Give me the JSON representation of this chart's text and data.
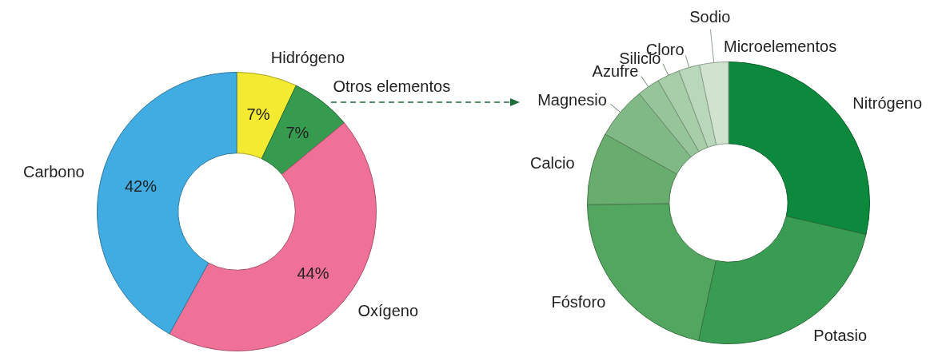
{
  "chart_data": [
    {
      "type": "donut",
      "categories": [
        "Hidrógeno",
        "Otros elementos",
        "Oxígeno",
        "Carbono"
      ],
      "values": [
        7,
        7,
        44,
        42
      ],
      "colors": [
        "#f3ea32",
        "#369b4f",
        "#f07198",
        "#40ace2"
      ],
      "value_labels": [
        "7%",
        "7%",
        "44%",
        "42%"
      ]
    },
    {
      "type": "donut",
      "categories": [
        "Nitrógeno",
        "Potasio",
        "Fósforo",
        "Calcio",
        "Magnesio",
        "Azufre",
        "Silicio",
        "Cloro",
        "Sodio"
      ],
      "values": [
        28.6,
        24.8,
        21.4,
        8.3,
        6.0,
        2.6,
        2.6,
        2.4,
        3.3
      ],
      "colors": [
        "#0d893e",
        "#389d52",
        "#53a660",
        "#68ad6e",
        "#80b985",
        "#97c59a",
        "#a8cea9",
        "#b9d7ba",
        "#cfe3cf"
      ],
      "annotations": [
        "Microelementos"
      ]
    }
  ]
}
